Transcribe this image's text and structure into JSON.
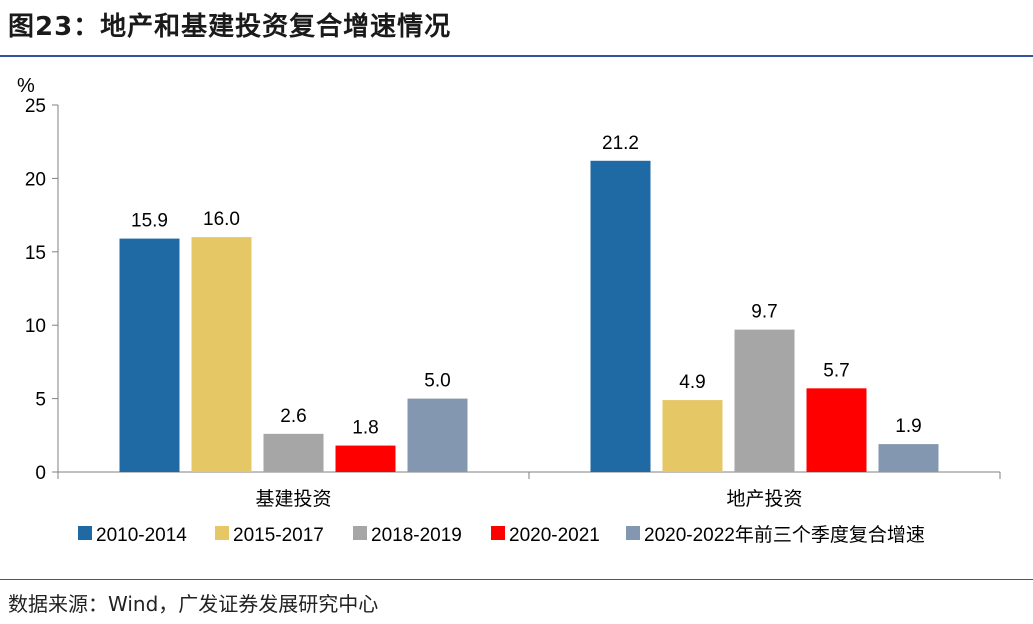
{
  "figure": {
    "title": "图23：地产和基建投资复合增速情况",
    "source": "数据来源：Wind，广发证券发展研究中心"
  },
  "chart_data": {
    "type": "bar",
    "unit_label": "%",
    "categories": [
      "基建投资",
      "地产投资"
    ],
    "series": [
      {
        "name": "2010-2014",
        "color": "#1f6aa5",
        "values": [
          15.9,
          21.2
        ]
      },
      {
        "name": "2015-2017",
        "color": "#e6c766",
        "values": [
          16.0,
          4.9
        ]
      },
      {
        "name": "2018-2019",
        "color": "#a6a6a6",
        "values": [
          2.6,
          9.7
        ]
      },
      {
        "name": "2020-2021",
        "color": "#ff0000",
        "values": [
          1.8,
          5.7
        ]
      },
      {
        "name": "2020-2022年前三个季度复合增速",
        "color": "#8497b0",
        "values": [
          5.0,
          1.9
        ]
      }
    ],
    "ylim": [
      0,
      25
    ],
    "yticks": [
      0,
      5,
      10,
      15,
      20,
      25
    ],
    "grid": false,
    "legend_position": "bottom"
  }
}
